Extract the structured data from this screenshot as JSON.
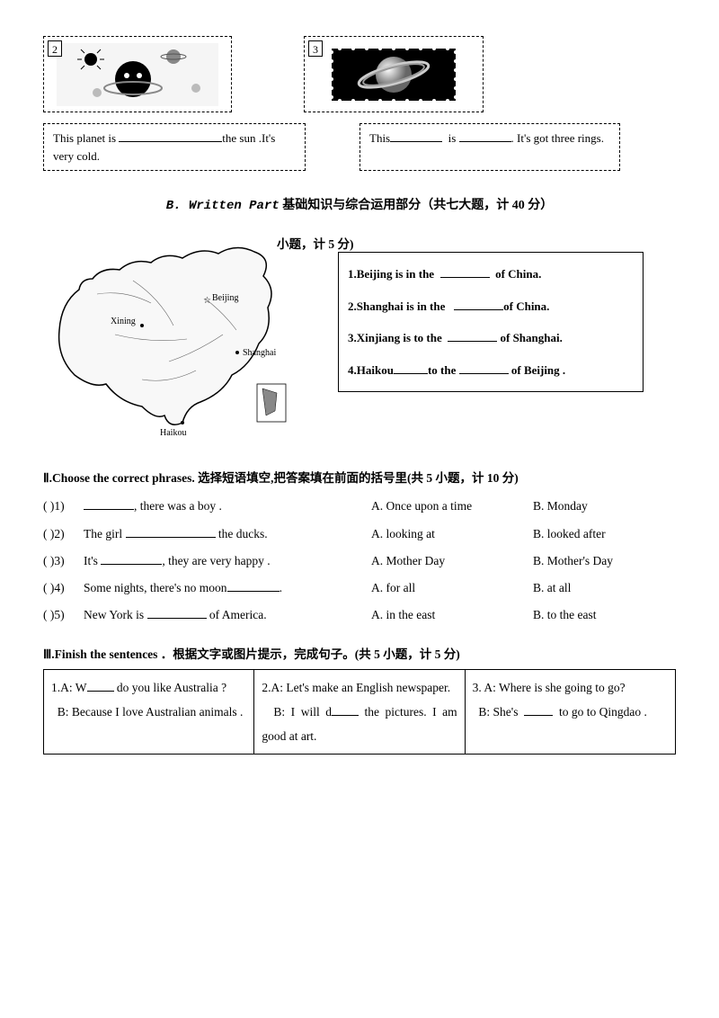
{
  "imageBoxes": {
    "box2": {
      "num": "2"
    },
    "box3": {
      "num": "3"
    }
  },
  "captions": {
    "c2_a": "This planet is ",
    "c2_b": "the sun .It's very cold.",
    "c3_a": "This",
    "c3_b": "is",
    "c3_c": ". It's got three rings."
  },
  "sectionB": {
    "prefix": "B. Written Part",
    "rest": " 基础知识与综合运用部分（共七大题，计 40 分）"
  },
  "sectionI": {
    "tail": "小题，计 5 分)"
  },
  "mapLabels": {
    "beijing": "Beijing",
    "xining": "Xining",
    "shanghai": "Shanghai",
    "haikou": "Haikou"
  },
  "mapQs": {
    "q1a": "1.Beijing is in the ",
    "q1b": " of China.",
    "q2a": "2.Shanghai is in the ",
    "q2b": "of China.",
    "q3a": "3.Xinjiang is to the ",
    "q3b": " of Shanghai.",
    "q4a": "4.Haikou",
    "q4b": "to the ",
    "q4c": " of Beijing ."
  },
  "sectionII": {
    "head": "Ⅱ.Choose the correct phrases. 选择短语填空,把答案填在前面的括号里(共 5 小题，计 10 分)",
    "rows": [
      {
        "paren": "(        )1)",
        "text_a": "",
        "blank_w": 56,
        "text_b": ", there was a boy .",
        "optA": "A. Once upon a time",
        "optB": "B. Monday"
      },
      {
        "paren": "(        )2)",
        "text_a": " The girl ",
        "blank_w": 100,
        "text_b": " the ducks.",
        "optA": "A. looking at",
        "optB": "B. looked after"
      },
      {
        "paren": "(        )3)",
        "text_a": " It's ",
        "blank_w": 68,
        "text_b": ", they are very happy .",
        "optA": "A. Mother Day",
        "optB": "B. Mother's Day"
      },
      {
        "paren": "(        )4)",
        "text_a": " Some nights, there's no moon",
        "blank_w": 58,
        "text_b": ".",
        "optA": "A. for all",
        "optB": "B. at all"
      },
      {
        "paren": "(        )5)",
        "text_a": " New York is ",
        "blank_w": 66,
        "text_b": " of America.",
        "optA": "A. in the east",
        "optB": "B. to the east"
      }
    ]
  },
  "sectionIII": {
    "head": "Ⅲ.Finish the sentences ．根据文字或图片提示，完成句子。(共 5 小题，计 5 分)",
    "cells": {
      "c1": {
        "l1a": "1.A: W",
        "l1b": " do you like Australia ?",
        "l2": "B: Because I love Australian animals ."
      },
      "c2": {
        "l1": "2.A: Let's make an English newspaper.",
        "l2a": "B: I will d",
        "l2b": " the pictures. I am good at art."
      },
      "c3": {
        "l1": "3. A: Where is she going to go?",
        "l2a": "B: She's ",
        "l2b": " to go to Qingdao ."
      }
    }
  }
}
